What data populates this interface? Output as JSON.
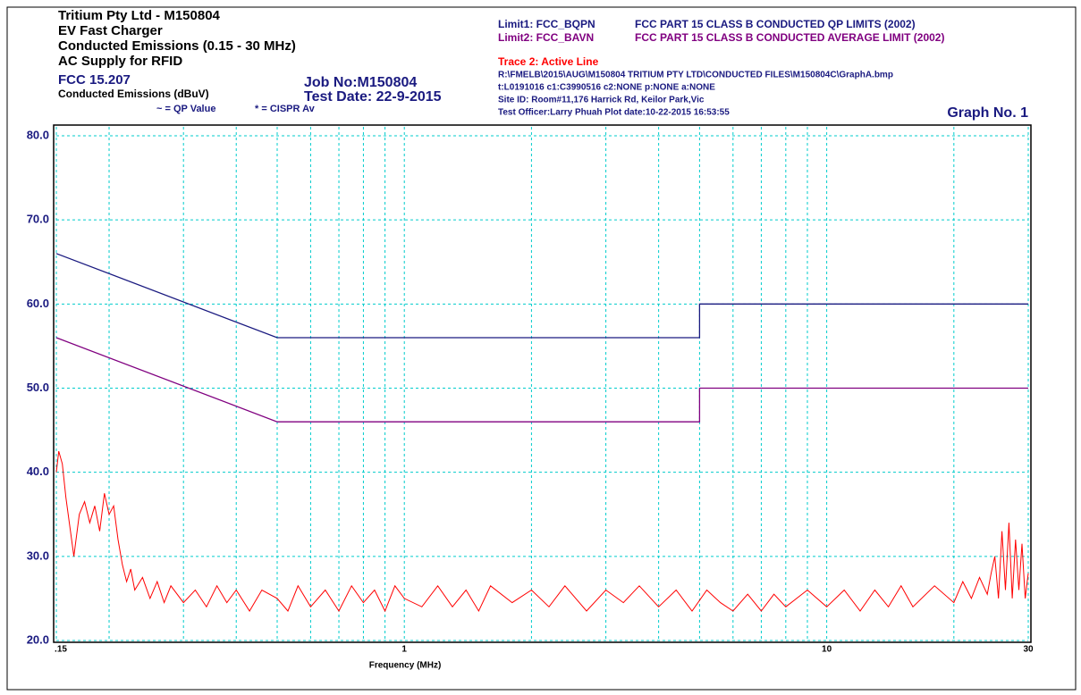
{
  "chart_data": {
    "type": "line",
    "title": "Tritium Pty Ltd - M150804",
    "subtitle_lines": [
      "EV Fast Charger",
      "Conducted Emissions (0.15 - 30 MHz)",
      "AC Supply for RFID"
    ],
    "standard": "FCC 15.207",
    "ylabel": "Conducted Emissions (dBuV)",
    "marker_notes": [
      "~ = QP Value",
      "* = CISPR Av"
    ],
    "job_no": "Job No:M150804",
    "test_date": "Test Date: 22-9-2015",
    "info_lines": [
      "R:\\FMELB\\2015\\AUG\\M150804 TRITIUM PTY LTD\\CONDUCTED FILES\\M150804C\\GraphA.bmp",
      "t:L0191016 c1:C3990516  c2:NONE p:NONE a:NONE",
      "Site ID: Room#11,176 Harrick Rd, Keilor Park,Vic",
      "Test Officer:Larry Phuah Plot date:10-22-2015 16:53:55"
    ],
    "graph_no": "Graph No.  1",
    "xlabel": "Frequency (MHz)",
    "xscale": "log",
    "xlim": [
      0.15,
      30
    ],
    "xticks": [
      {
        "value": 0.15,
        "label": ".15"
      },
      1,
      10,
      30
    ],
    "xminor": [
      0.2,
      0.3,
      0.4,
      0.5,
      0.6,
      0.7,
      0.8,
      0.9,
      2,
      3,
      4,
      5,
      6,
      7,
      8,
      9,
      20
    ],
    "ylim": [
      20,
      80
    ],
    "yticks": [
      {
        "value": 20,
        "label": "20.0"
      },
      {
        "value": 30,
        "label": "30.0"
      },
      {
        "value": 40,
        "label": "40.0"
      },
      {
        "value": 50,
        "label": "50.0"
      },
      {
        "value": 60,
        "label": "60.0"
      },
      {
        "value": 70,
        "label": "70.0"
      },
      {
        "value": 80,
        "label": "80.0"
      }
    ],
    "grid": true,
    "grid_color": "#00cccc",
    "series": [
      {
        "name": "Limit1: FCC_BQPN",
        "description": "FCC PART 15 CLASS B CONDUCTED QP LIMITS (2002)",
        "color": "#1a1a80",
        "x": [
          0.15,
          0.5,
          5,
          5,
          30
        ],
        "values": [
          66,
          56,
          56,
          60,
          60
        ]
      },
      {
        "name": "Limit2: FCC_BAVN",
        "description": "FCC PART 15  CLASS B CONDUCTED AVERAGE LIMIT (2002)",
        "color": "#800080",
        "x": [
          0.15,
          0.5,
          5,
          5,
          30
        ],
        "values": [
          56,
          46,
          46,
          50,
          50
        ]
      },
      {
        "name": "Trace 2: Active Line",
        "color": "#ff0000",
        "x": [
          0.15,
          0.152,
          0.155,
          0.158,
          0.162,
          0.165,
          0.17,
          0.175,
          0.18,
          0.185,
          0.19,
          0.195,
          0.2,
          0.205,
          0.21,
          0.215,
          0.22,
          0.225,
          0.23,
          0.24,
          0.25,
          0.26,
          0.27,
          0.28,
          0.3,
          0.32,
          0.34,
          0.36,
          0.38,
          0.4,
          0.43,
          0.46,
          0.5,
          0.53,
          0.56,
          0.6,
          0.65,
          0.7,
          0.75,
          0.8,
          0.85,
          0.9,
          0.95,
          1,
          1.1,
          1.2,
          1.3,
          1.4,
          1.5,
          1.6,
          1.8,
          2,
          2.2,
          2.4,
          2.7,
          3,
          3.3,
          3.6,
          4,
          4.4,
          4.8,
          5.2,
          5.6,
          6,
          6.5,
          7,
          7.5,
          8,
          9,
          10,
          11,
          12,
          13,
          14,
          15,
          16,
          18,
          20,
          21,
          22,
          23,
          24,
          24.5,
          25,
          25.5,
          26,
          26.5,
          27,
          27.5,
          28,
          28.5,
          29,
          29.5,
          30
        ],
        "values": [
          40,
          42.5,
          41,
          37,
          33,
          30,
          35,
          36.5,
          34,
          36,
          33,
          37.5,
          35,
          36,
          32,
          29,
          27,
          28.5,
          26,
          27.5,
          25,
          27,
          24.5,
          26.5,
          24.5,
          26,
          24,
          26.5,
          24.5,
          26,
          23.5,
          26,
          25,
          23.5,
          26.5,
          24,
          26,
          23.5,
          26.5,
          24.5,
          26,
          23.5,
          26.5,
          25,
          24,
          26.5,
          24,
          26,
          23.5,
          26.5,
          24.5,
          26,
          24,
          26.5,
          23.5,
          26,
          24.5,
          26.5,
          24,
          26,
          23.5,
          26,
          24.5,
          23.5,
          25.5,
          23.5,
          25.5,
          24,
          26,
          24,
          26,
          23.5,
          26,
          24,
          26.5,
          24,
          26.5,
          24.5,
          27,
          25,
          27.5,
          25.5,
          28,
          30,
          25,
          33,
          26,
          34,
          25,
          32,
          26,
          31.5,
          25,
          28
        ]
      }
    ]
  }
}
